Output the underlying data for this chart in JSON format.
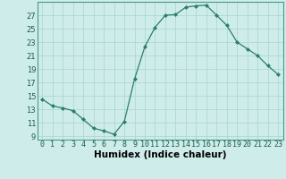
{
  "x": [
    0,
    1,
    2,
    3,
    4,
    5,
    6,
    7,
    8,
    9,
    10,
    11,
    12,
    13,
    14,
    15,
    16,
    17,
    18,
    19,
    20,
    21,
    22,
    23
  ],
  "y": [
    14.5,
    13.5,
    13.2,
    12.8,
    11.5,
    10.2,
    9.8,
    9.3,
    11.2,
    17.5,
    22.3,
    25.2,
    27.0,
    27.1,
    28.2,
    28.4,
    28.5,
    27.0,
    25.5,
    23.0,
    22.0,
    21.0,
    19.5,
    18.2
  ],
  "line_color": "#2d7d6e",
  "marker": "D",
  "marker_size": 2,
  "bg_color": "#ceecea",
  "grid_color": "#a8d4cf",
  "xlabel": "Humidex (Indice chaleur)",
  "xlim": [
    -0.5,
    23.5
  ],
  "ylim": [
    8.5,
    29
  ],
  "yticks": [
    9,
    11,
    13,
    15,
    17,
    19,
    21,
    23,
    25,
    27
  ],
  "xticks": [
    0,
    1,
    2,
    3,
    4,
    5,
    6,
    7,
    8,
    9,
    10,
    11,
    12,
    13,
    14,
    15,
    16,
    17,
    18,
    19,
    20,
    21,
    22,
    23
  ],
  "xtick_labels": [
    "0",
    "1",
    "2",
    "3",
    "4",
    "5",
    "6",
    "7",
    "8",
    "9",
    "10",
    "11",
    "12",
    "13",
    "14",
    "15",
    "16",
    "17",
    "18",
    "19",
    "20",
    "21",
    "22",
    "23"
  ],
  "xlabel_fontsize": 7.5,
  "tick_fontsize": 6.0
}
